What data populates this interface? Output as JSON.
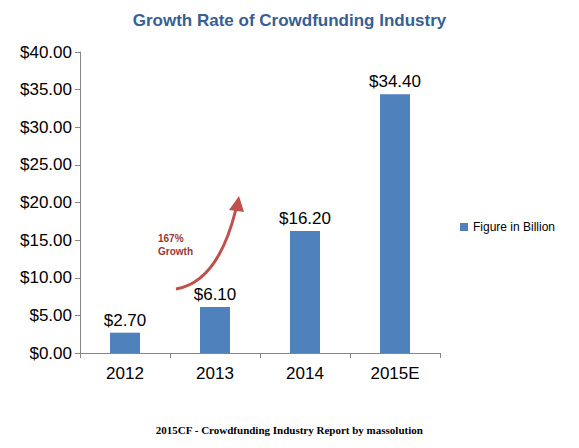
{
  "chart_data": {
    "type": "bar",
    "title": "Growth Rate of Crowdfunding Industry",
    "categories": [
      "2012",
      "2013",
      "2014",
      "2015E"
    ],
    "series": [
      {
        "name": "Figure in Billion",
        "color": "#4f81bd",
        "values": [
          2.7,
          6.1,
          16.2,
          34.4
        ],
        "value_labels": [
          "$2.70",
          "$6.10",
          "$16.20",
          "$34.40"
        ]
      }
    ],
    "ylim": [
      0,
      40
    ],
    "yticks": [
      {
        "value": 0,
        "label": "$0.00"
      },
      {
        "value": 5,
        "label": "$5.00"
      },
      {
        "value": 10,
        "label": "$10.00"
      },
      {
        "value": 15,
        "label": "$15.00"
      },
      {
        "value": 20,
        "label": "$20.00"
      },
      {
        "value": 25,
        "label": "$25.00"
      },
      {
        "value": 30,
        "label": "$30.00"
      },
      {
        "value": 35,
        "label": "$35.00"
      },
      {
        "value": 40,
        "label": "$40.00"
      }
    ],
    "annotations": [
      {
        "text": "167%\nGrowth"
      }
    ],
    "caption": "2015CF - Crowdfunding Industry Report by massolution",
    "grid": false,
    "data_labels": true,
    "legend": "right"
  }
}
